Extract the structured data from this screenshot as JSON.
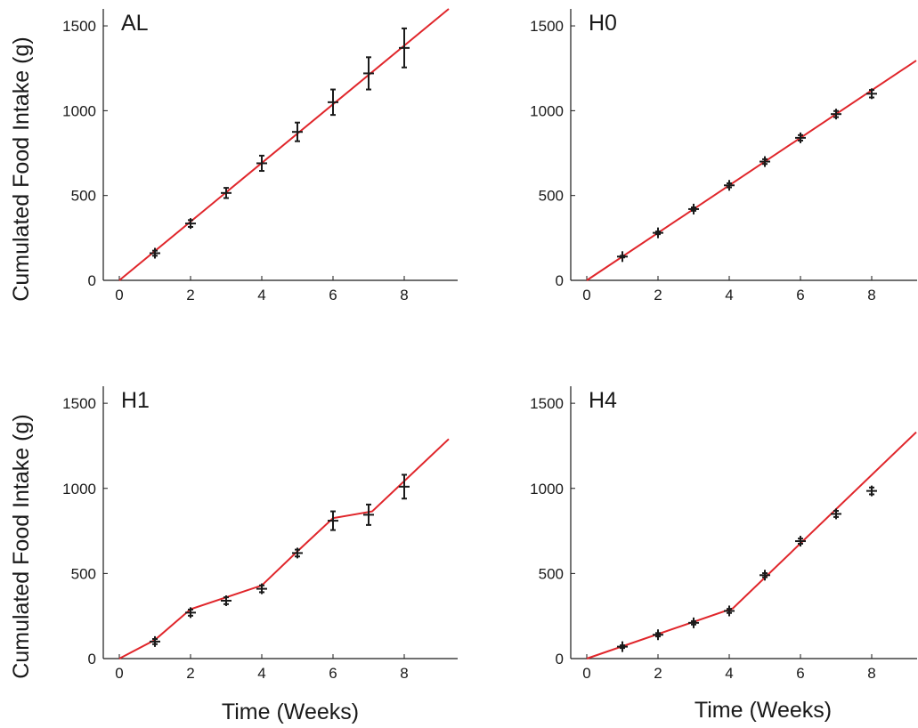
{
  "figure": {
    "ylabel": "Cumulated Food Intake (g)",
    "xlabel": "Time (Weeks)"
  },
  "colors": {
    "fit": "#e0262b",
    "data": "#1a1a1a",
    "axis": "#1a1a1a"
  },
  "chart_data": [
    {
      "type": "line",
      "title": "AL",
      "xlim": [
        0,
        9.5
      ],
      "ylim": [
        0,
        1600
      ],
      "xticks": [
        "0",
        "2",
        "4",
        "6",
        "8"
      ],
      "yticks": [
        "0",
        "500",
        "1000",
        "1500"
      ],
      "grid": false,
      "data": {
        "x": [
          1,
          2,
          3,
          4,
          5,
          6,
          7,
          8
        ],
        "y": [
          160,
          335,
          515,
          690,
          875,
          1050,
          1220,
          1370
        ],
        "err": [
          15,
          20,
          30,
          45,
          55,
          75,
          95,
          115
        ]
      },
      "fit": {
        "x": [
          0,
          9.25
        ],
        "y": [
          0,
          1600
        ]
      }
    },
    {
      "type": "line",
      "title": "H0",
      "xlim": [
        0,
        9.5
      ],
      "ylim": [
        0,
        1600
      ],
      "xticks": [
        "0",
        "2",
        "4",
        "6",
        "8"
      ],
      "yticks": [
        "0",
        "500",
        "1000",
        "1500"
      ],
      "grid": false,
      "data": {
        "x": [
          1,
          2,
          3,
          4,
          5,
          6,
          7,
          8
        ],
        "y": [
          140,
          280,
          420,
          560,
          700,
          840,
          980,
          1100
        ],
        "err": [
          5,
          8,
          10,
          12,
          14,
          16,
          18,
          22
        ]
      },
      "fit": {
        "x": [
          0,
          9.25
        ],
        "y": [
          0,
          1295
        ]
      }
    },
    {
      "type": "line",
      "title": "H1",
      "xlim": [
        0,
        9.5
      ],
      "ylim": [
        0,
        1600
      ],
      "xticks": [
        "0",
        "2",
        "4",
        "6",
        "8"
      ],
      "yticks": [
        "0",
        "500",
        "1000",
        "1500"
      ],
      "grid": false,
      "data": {
        "x": [
          1,
          2,
          3,
          4,
          5,
          6,
          7,
          8
        ],
        "y": [
          100,
          270,
          340,
          410,
          620,
          810,
          845,
          1010
        ],
        "err": [
          15,
          18,
          20,
          20,
          20,
          55,
          60,
          70
        ]
      },
      "fit": {
        "x": [
          0,
          1,
          2,
          4,
          5,
          6,
          7.1,
          9.25
        ],
        "y": [
          0,
          110,
          290,
          430,
          630,
          825,
          865,
          1290
        ]
      }
    },
    {
      "type": "line",
      "title": "H4",
      "xlim": [
        0,
        9.5
      ],
      "ylim": [
        0,
        1600
      ],
      "xticks": [
        "0",
        "2",
        "4",
        "6",
        "8"
      ],
      "yticks": [
        "0",
        "500",
        "1000",
        "1500"
      ],
      "grid": false,
      "data": {
        "x": [
          1,
          2,
          3,
          4,
          5,
          6,
          7,
          8
        ],
        "y": [
          70,
          140,
          210,
          280,
          490,
          690,
          850,
          985
        ],
        "err": [
          8,
          10,
          10,
          12,
          12,
          15,
          18,
          20
        ]
      },
      "fit": {
        "x": [
          0,
          4.1,
          9.25
        ],
        "y": [
          0,
          295,
          1330
        ]
      }
    }
  ]
}
